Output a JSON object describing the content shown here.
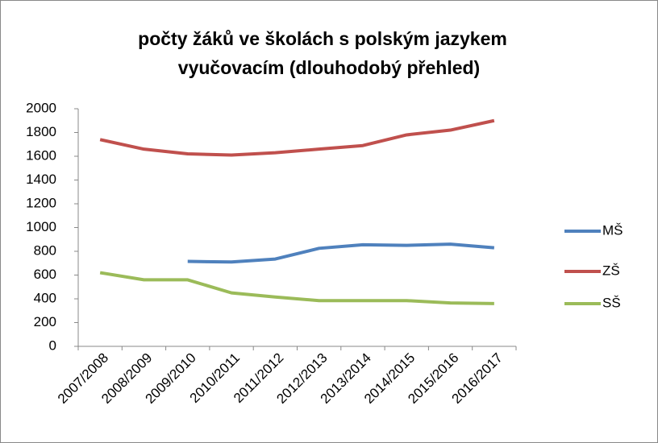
{
  "chart_data": {
    "type": "line",
    "title": [
      "počty žáků ve školách s polským jazykem",
      "vyučovacím (dlouhodobý přehled)"
    ],
    "categories": [
      "2007/2008",
      "2008/2009",
      "2009/2010",
      "2010/2011",
      "2011/2012",
      "2012/2013",
      "2013/2014",
      "2014/2015",
      "2015/2016",
      "2016/2017"
    ],
    "series": [
      {
        "name": "MŠ",
        "color": "#4f81bd",
        "values": [
          null,
          null,
          715,
          710,
          735,
          825,
          855,
          850,
          860,
          830
        ]
      },
      {
        "name": "ZŠ",
        "color": "#c0504d",
        "values": [
          1740,
          1660,
          1620,
          1610,
          1630,
          1660,
          1690,
          1780,
          1820,
          1900
        ]
      },
      {
        "name": "SŠ",
        "color": "#9bbb59",
        "values": [
          620,
          560,
          560,
          450,
          415,
          385,
          385,
          385,
          365,
          360
        ]
      }
    ],
    "ylim": [
      0,
      2000
    ],
    "yticks": [
      0,
      200,
      400,
      600,
      800,
      1000,
      1200,
      1400,
      1600,
      1800,
      2000
    ],
    "grid": false,
    "legend": "right"
  }
}
